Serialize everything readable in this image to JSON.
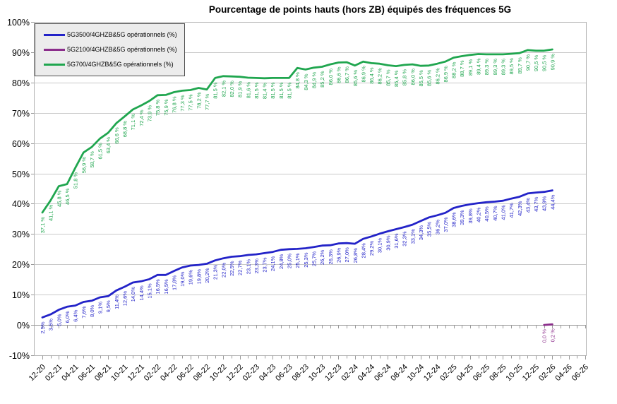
{
  "chart_data": {
    "type": "line",
    "title": "Pourcentage de points hauts (hors ZB) équipés des fréquences 5G",
    "legend_position": "top-left-inside",
    "grid": "horizontal",
    "y_axis": {
      "min": -10,
      "max": 100,
      "step": 10,
      "suffix": "%"
    },
    "x_axis": {
      "months_span": 66,
      "major_tick_every_months": 2,
      "minor_tick_every_months": 1,
      "tick_labels": [
        "12-20",
        "02-21",
        "04-21",
        "06-21",
        "08-21",
        "10-21",
        "12-21",
        "02-22",
        "04-22",
        "06-22",
        "08-22",
        "10-22",
        "12-22",
        "02-23",
        "04-23",
        "06-23",
        "08-23",
        "10-23",
        "12-23",
        "02-24",
        "04-24",
        "06-24",
        "08-24",
        "10-24",
        "12-24",
        "02-25",
        "04-25",
        "06-25",
        "08-25",
        "10-25",
        "12-25",
        "02-26",
        "04-26",
        "06-26"
      ]
    },
    "series": [
      {
        "name": "5G3500/4GHZB&5G opérationnels (%)",
        "color": "#2323c8",
        "start_month": 0,
        "label_suffix": "%",
        "values": [
          2.5,
          3.5,
          5.0,
          6.0,
          6.4,
          7.6,
          8.0,
          9.1,
          9.5,
          11.4,
          12.6,
          14.0,
          14.4,
          15.1,
          16.5,
          16.5,
          17.8,
          19.0,
          19.6,
          19.8,
          20.2,
          21.3,
          22.0,
          22.5,
          22.7,
          23.1,
          23.3,
          23.7,
          24.1,
          24.8,
          25.0,
          25.1,
          25.3,
          25.7,
          26.2,
          26.3,
          26.9,
          27.0,
          26.8,
          28.4,
          29.2,
          30.1,
          30.9,
          31.6,
          32.3,
          33.1,
          34.3,
          35.5,
          36.2,
          37.0,
          38.6,
          39.3,
          39.8,
          40.2,
          40.5,
          40.7,
          41.0,
          41.7,
          42.3,
          43.4,
          43.7,
          43.9,
          44.4
        ]
      },
      {
        "name": "5G2100/4GHZB&5G opérationnels (%)",
        "color": "#8b2d8b",
        "start_month": 61,
        "label_suffix": " %",
        "values": [
          0.0,
          0.2
        ]
      },
      {
        "name": "5G700/4GHZB&5G opérationnels (%)",
        "color": "#20a64f",
        "start_month": 0,
        "label_suffix": " %",
        "values": [
          37.1,
          41.1,
          45.8,
          46.5,
          51.8,
          56.9,
          58.7,
          61.5,
          63.4,
          66.6,
          68.8,
          71.1,
          72.4,
          73.9,
          75.8,
          75.9,
          76.8,
          77.3,
          77.5,
          78.2,
          77.7,
          81.5,
          82.1,
          82.0,
          81.9,
          81.6,
          81.5,
          81.4,
          81.5,
          81.5,
          81.5,
          84.8,
          84.3,
          84.9,
          85.2,
          86.0,
          86.6,
          86.7,
          85.6,
          86.9,
          86.4,
          86.2,
          85.7,
          85.4,
          85.8,
          86.0,
          85.5,
          85.6,
          86.2,
          86.9,
          88.2,
          88.7,
          89.1,
          89.4,
          89.3,
          89.3,
          89.3,
          89.5,
          89.7,
          90.7,
          90.5,
          90.5,
          90.9
        ]
      }
    ],
    "colors": {
      "gridline": "#c9c9c9",
      "plot_border": "#b3b3b3",
      "zero_axis": "#9a9a9a",
      "axis_text": "#000000",
      "legend_bg": "#ececec",
      "legend_border": "#4d4d4d"
    }
  }
}
